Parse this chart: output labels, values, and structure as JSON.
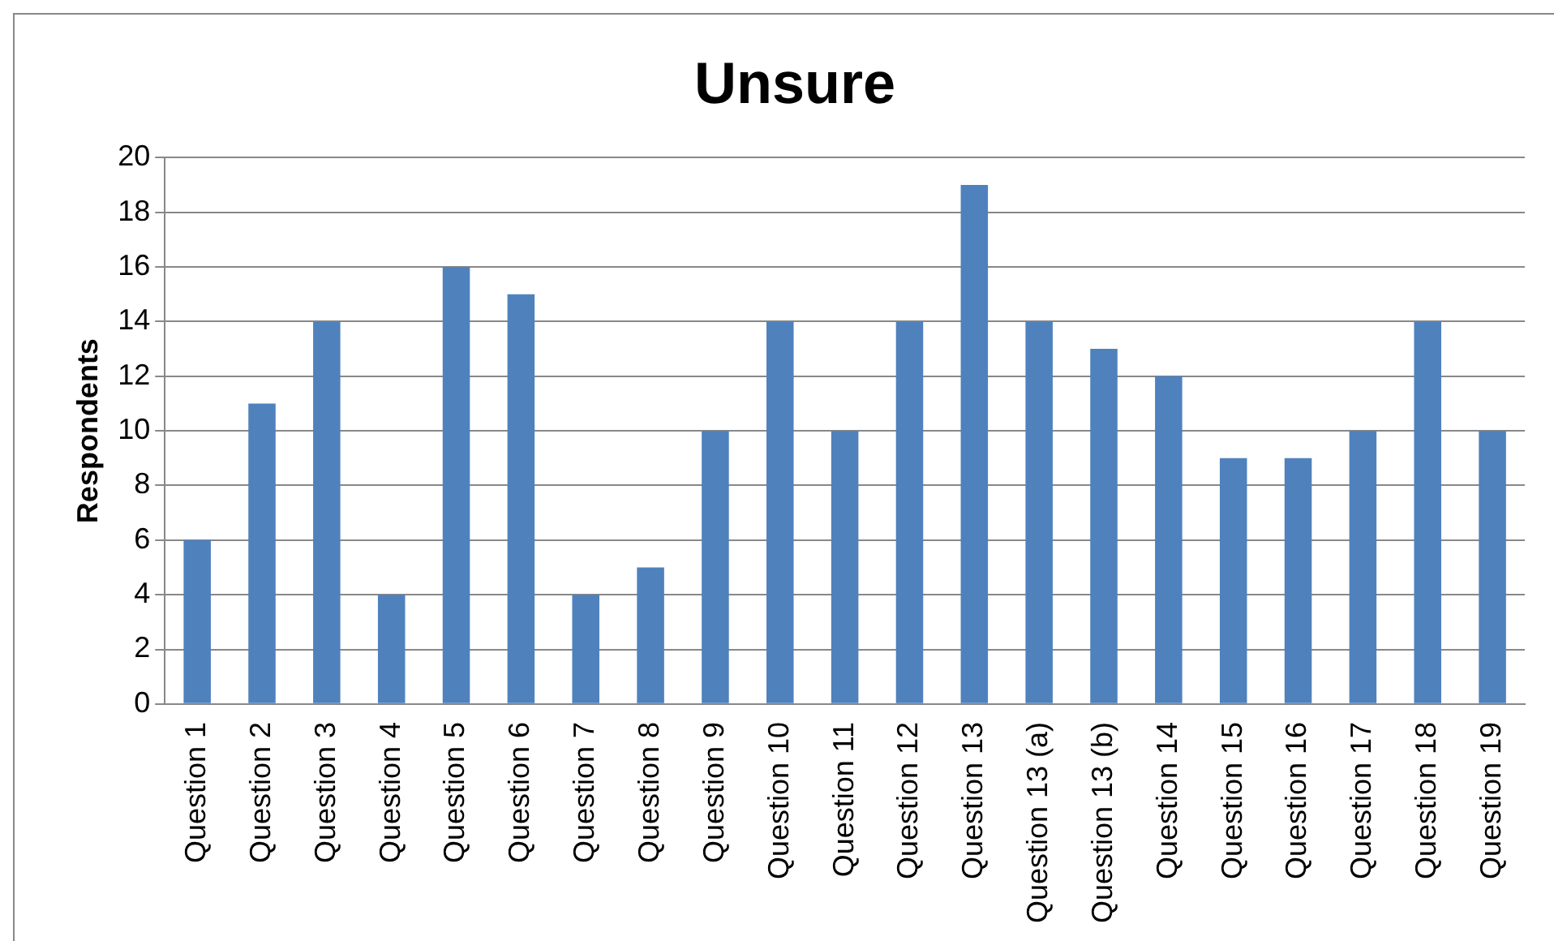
{
  "chart_data": {
    "type": "bar",
    "title": "Unsure",
    "ylabel": "Respondents",
    "categories": [
      "Question 1",
      "Question 2",
      "Question 3",
      "Question 4",
      "Question 5",
      "Question 6",
      "Question 7",
      "Question 8",
      "Question 9",
      "Question 10",
      "Question 11",
      "Question 12",
      "Question 13",
      "Question 13 (a)",
      "Question 13 (b)",
      "Question 14",
      "Question 15",
      "Question 16",
      "Question 17",
      "Question 18",
      "Question 19"
    ],
    "values": [
      6,
      11,
      14,
      4,
      16,
      15,
      4,
      5,
      10,
      14,
      10,
      14,
      19,
      14,
      13,
      12,
      9,
      9,
      10,
      14,
      10
    ],
    "color": "#4f81bd",
    "ylim": [
      0,
      20
    ],
    "yticks": [
      0,
      2,
      4,
      6,
      8,
      10,
      12,
      14,
      16,
      18,
      20
    ],
    "grid": "y",
    "legend": false
  }
}
